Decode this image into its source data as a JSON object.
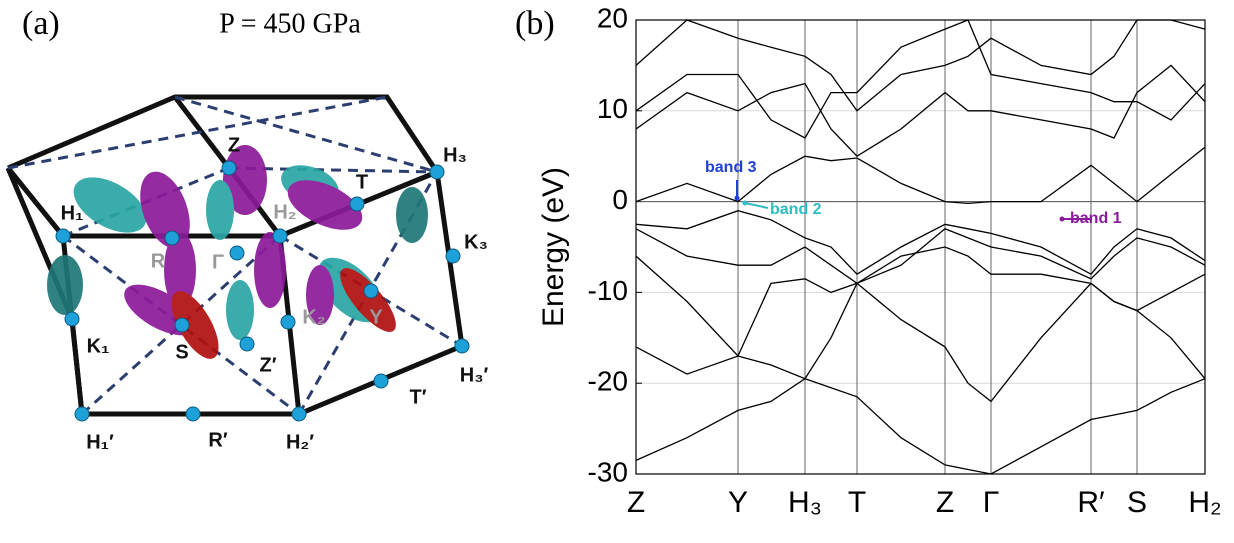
{
  "panel_a": {
    "label": "(a)",
    "title": "P = 450 GPa",
    "points": [
      "Z",
      "T",
      "H₁",
      "H₂",
      "H₃",
      "K₃",
      "R",
      "Γ",
      "K₁",
      "S",
      "K₂",
      "Y",
      "Z′",
      "H₃′",
      "T′",
      "H₁′",
      "R′",
      "H₂′"
    ]
  },
  "chart_data": {
    "type": "line",
    "label": "(b)",
    "y_label": "Energy (eV)",
    "ylim": [
      -30,
      20
    ],
    "yticks": [
      -30,
      -20,
      -10,
      0,
      10,
      20
    ],
    "xlim": [
      0,
      569
    ],
    "xticks": [
      {
        "value": 0,
        "label": "Z"
      },
      {
        "value": 102,
        "label": "Y"
      },
      {
        "value": 169,
        "label": "H₃"
      },
      {
        "value": 221,
        "label": "T"
      },
      {
        "value": 309,
        "label": "Z"
      },
      {
        "value": 355,
        "label": "Γ"
      },
      {
        "value": 455,
        "label": "R′"
      },
      {
        "value": 501,
        "label": "S"
      },
      {
        "value": 569,
        "label": "H₂"
      }
    ],
    "grid": true,
    "x": [
      0,
      51,
      102,
      135,
      169,
      195,
      221,
      265,
      309,
      332,
      355,
      405,
      455,
      478,
      501,
      535,
      569
    ],
    "series": [
      {
        "color": "#000000",
        "values": [
          -28.5,
          -26,
          -23,
          -22,
          -19.5,
          -20.5,
          -21.5,
          -26,
          -29,
          -29.5,
          -30,
          -27,
          -24,
          -23.5,
          -23,
          -21,
          -19.5
        ]
      },
      {
        "color": "#000000",
        "values": [
          -16,
          -19,
          -17,
          -18,
          -19.5,
          -15,
          -9,
          -13,
          -16,
          -20,
          -22,
          -15,
          -9,
          -11,
          -12,
          -15,
          -19.5
        ]
      },
      {
        "color": "#000000",
        "values": [
          -6,
          -11,
          -17,
          -9,
          -8.5,
          -10,
          -9,
          -6,
          -5,
          -6,
          -8,
          -8,
          -9,
          -11,
          -12,
          -10,
          -8
        ]
      },
      {
        "color": "#000000",
        "values": [
          -3,
          -6,
          -7,
          -7,
          -5,
          -7,
          -9,
          -7,
          -3,
          -4,
          -5,
          -6,
          -8.5,
          -6,
          -4,
          -5,
          -7
        ]
      },
      {
        "color": "#000000",
        "values": [
          -2.5,
          -3,
          -1,
          -2,
          -4,
          -5,
          -8,
          -5,
          -2.5,
          -3,
          -3.5,
          -5,
          -8,
          -5,
          -3,
          -4,
          -6.5
        ]
      },
      {
        "color": "#000000",
        "values": [
          0,
          2,
          0,
          3,
          5,
          4.5,
          4.8,
          2,
          0,
          -0.2,
          0,
          0,
          4,
          2,
          0,
          3,
          6
        ]
      },
      {
        "color": "#000000",
        "values": [
          8,
          12,
          10,
          12,
          13,
          8,
          5,
          8,
          12,
          10,
          10,
          9,
          8,
          7,
          12,
          15,
          11
        ]
      },
      {
        "color": "#000000",
        "values": [
          10,
          14,
          14,
          9,
          7,
          12,
          12,
          17,
          19,
          20,
          14,
          13,
          12,
          11,
          11,
          9,
          13
        ]
      },
      {
        "color": "#000000",
        "values": [
          15,
          20,
          18,
          17,
          16,
          14,
          10,
          14,
          15,
          16,
          18,
          15,
          14,
          16,
          20,
          20,
          19
        ]
      }
    ],
    "annotations": [
      {
        "text": "band 3",
        "color": "#1f3fd6"
      },
      {
        "text": "band 2",
        "color": "#2fbcc4"
      },
      {
        "text": "band 1",
        "color": "#8a1a9b"
      }
    ]
  }
}
